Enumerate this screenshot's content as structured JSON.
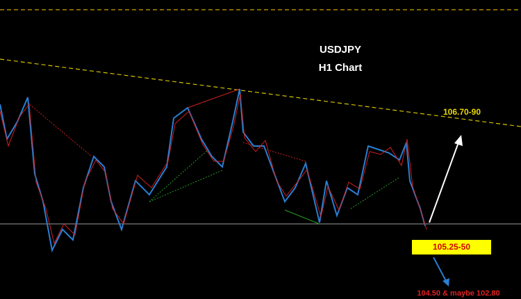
{
  "chart": {
    "title": "USDJPY",
    "subtitle": "H1 Chart",
    "annotations": {
      "resistance": "106.70-90",
      "target": "105.25-50",
      "downside": "104.50 & maybe 102.80"
    }
  }
}
